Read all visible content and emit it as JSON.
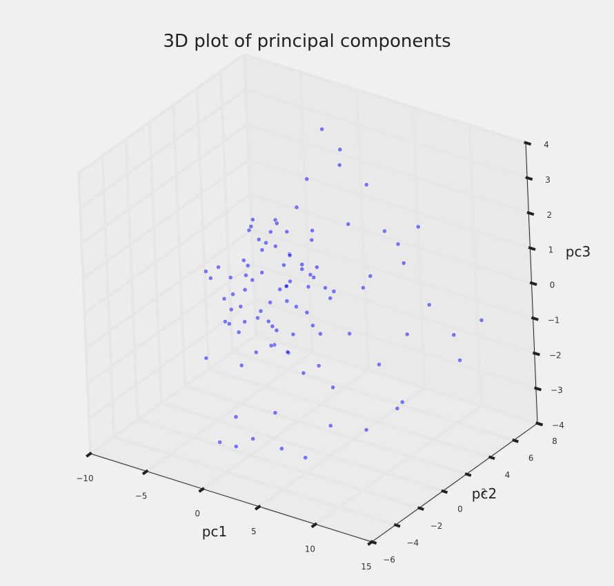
{
  "chart_data": {
    "type": "scatter",
    "projection": "3d",
    "title": "3D plot of principal components",
    "xlabel": "pc1",
    "ylabel": "pc2",
    "zlabel": "pc3",
    "xlim": [
      -10,
      15
    ],
    "ylim": [
      -6,
      8
    ],
    "zlim": [
      -4,
      4
    ],
    "xticks": [
      -10,
      -5,
      0,
      5,
      10,
      15
    ],
    "yticks": [
      -6,
      -4,
      -2,
      0,
      2,
      4,
      6,
      8
    ],
    "zticks": [
      -4,
      -3,
      -2,
      -1,
      0,
      1,
      2,
      3,
      4
    ],
    "grid": true,
    "marker_color": "#0000ff",
    "background": "#f0f0f0",
    "pane_color": "#eaeaea",
    "grid_color": "#e6e6e6",
    "points": [
      [
        0.0,
        1.0,
        0.0
      ],
      [
        -1.0,
        0.5,
        0.5
      ],
      [
        0.5,
        -0.5,
        -0.5
      ],
      [
        -2.0,
        1.5,
        0.8
      ],
      [
        1.5,
        0.5,
        0.5
      ],
      [
        -0.5,
        2.0,
        -0.2
      ],
      [
        0.8,
        1.2,
        1.0
      ],
      [
        -1.5,
        -0.5,
        0.2
      ],
      [
        2.0,
        2.0,
        0.3
      ],
      [
        -2.5,
        0.0,
        -0.5
      ],
      [
        0.3,
        -1.5,
        0.9
      ],
      [
        -0.8,
        2.5,
        1.2
      ],
      [
        1.2,
        -1.0,
        -1.0
      ],
      [
        -1.8,
        1.0,
        -0.8
      ],
      [
        2.5,
        0.0,
        0.0
      ],
      [
        -0.2,
        0.2,
        1.5
      ],
      [
        0.6,
        2.8,
        -0.3
      ],
      [
        -2.2,
        -1.0,
        0.6
      ],
      [
        1.8,
        1.5,
        -0.6
      ],
      [
        -1.2,
        3.0,
        0.4
      ],
      [
        0.0,
        -2.0,
        -0.2
      ],
      [
        -3.0,
        1.0,
        0.1
      ],
      [
        2.8,
        1.0,
        0.7
      ],
      [
        -0.6,
        -1.0,
        1.1
      ],
      [
        1.0,
        3.2,
        0.2
      ],
      [
        -2.8,
        2.0,
        0.9
      ],
      [
        0.4,
        0.0,
        -1.3
      ],
      [
        -1.4,
        -2.0,
        -0.4
      ],
      [
        3.2,
        2.5,
        -0.1
      ],
      [
        -0.9,
        1.8,
        1.6
      ],
      [
        1.4,
        -2.2,
        0.1
      ],
      [
        -3.4,
        -0.5,
        -0.9
      ],
      [
        0.2,
        3.6,
        0.8
      ],
      [
        2.2,
        -0.6,
        1.3
      ],
      [
        -2.0,
        3.4,
        -0.7
      ],
      [
        0.9,
        0.6,
        -1.6
      ],
      [
        -1.6,
        0.3,
        1.8
      ],
      [
        3.6,
        0.3,
        -0.5
      ],
      [
        -0.3,
        -2.6,
        0.7
      ],
      [
        1.6,
        2.4,
        1.5
      ],
      [
        -3.8,
        1.6,
        0.3
      ],
      [
        0.7,
        -0.2,
        2.0
      ],
      [
        -1.0,
        3.8,
        -0.2
      ],
      [
        2.6,
        1.8,
        -1.2
      ],
      [
        -2.6,
        -1.6,
        1.0
      ],
      [
        0.1,
        1.4,
        -1.9
      ],
      [
        -0.4,
        -0.8,
        -1.4
      ],
      [
        1.1,
        1.9,
        0.6
      ],
      [
        -1.9,
        2.6,
        1.4
      ],
      [
        2.4,
        -1.6,
        -0.3
      ],
      [
        -3.2,
        0.4,
        -1.4
      ],
      [
        0.5,
        2.2,
        2.1
      ],
      [
        -0.7,
        0.9,
        -1.1
      ],
      [
        1.9,
        0.2,
        -0.9
      ],
      [
        -2.4,
        1.2,
        1.7
      ],
      [
        3.0,
        -1.2,
        0.5
      ],
      [
        -1.1,
        -1.4,
        -1.7
      ],
      [
        0.8,
        4.0,
        -0.6
      ],
      [
        -2.9,
        2.8,
        -1.1
      ],
      [
        1.3,
        -0.4,
        1.7
      ],
      [
        4.5,
        1.0,
        0.2
      ],
      [
        5.0,
        2.0,
        -1.0
      ],
      [
        4.0,
        -1.0,
        -1.5
      ],
      [
        6.0,
        3.0,
        0.5
      ],
      [
        5.5,
        0.0,
        -2.0
      ],
      [
        7.0,
        2.5,
        -1.8
      ],
      [
        8.0,
        4.0,
        -1.2
      ],
      [
        6.5,
        -2.0,
        -0.8
      ],
      [
        9.0,
        5.0,
        -0.5
      ],
      [
        10.0,
        6.0,
        -1.5
      ],
      [
        7.5,
        1.0,
        0.8
      ],
      [
        8.5,
        3.5,
        1.0
      ],
      [
        11.0,
        5.5,
        -2.0
      ],
      [
        12.0,
        6.5,
        -1.0
      ],
      [
        9.5,
        2.0,
        -2.5
      ],
      [
        6.8,
        -1.5,
        -2.6
      ],
      [
        5.8,
        4.5,
        1.4
      ],
      [
        4.2,
        3.0,
        1.8
      ],
      [
        3.8,
        5.0,
        2.4
      ],
      [
        2.0,
        4.5,
        2.9
      ],
      [
        1.0,
        5.5,
        3.0
      ],
      [
        0.0,
        5.0,
        3.6
      ],
      [
        -1.0,
        4.5,
        2.2
      ],
      [
        3.5,
        -3.0,
        -2.2
      ],
      [
        2.5,
        -4.0,
        -2.8
      ],
      [
        1.5,
        -4.5,
        -3.0
      ],
      [
        0.5,
        -3.5,
        -2.5
      ],
      [
        -0.5,
        -4.0,
        -3.2
      ],
      [
        4.5,
        -3.5,
        -3.0
      ],
      [
        5.5,
        -2.5,
        -3.4
      ],
      [
        7.8,
        0.5,
        -3.1
      ],
      [
        8.8,
        2.2,
        -2.8
      ],
      [
        -4.5,
        0.5,
        -0.6
      ],
      [
        -4.0,
        -1.0,
        0.4
      ],
      [
        -5.0,
        1.5,
        -1.2
      ],
      [
        -4.2,
        2.5,
        0.9
      ],
      [
        -3.6,
        -2.0,
        -1.6
      ],
      [
        -5.5,
        0.0,
        0.2
      ],
      [
        6.2,
        5.2,
        0.9
      ],
      [
        7.2,
        6.0,
        1.3
      ]
    ]
  }
}
